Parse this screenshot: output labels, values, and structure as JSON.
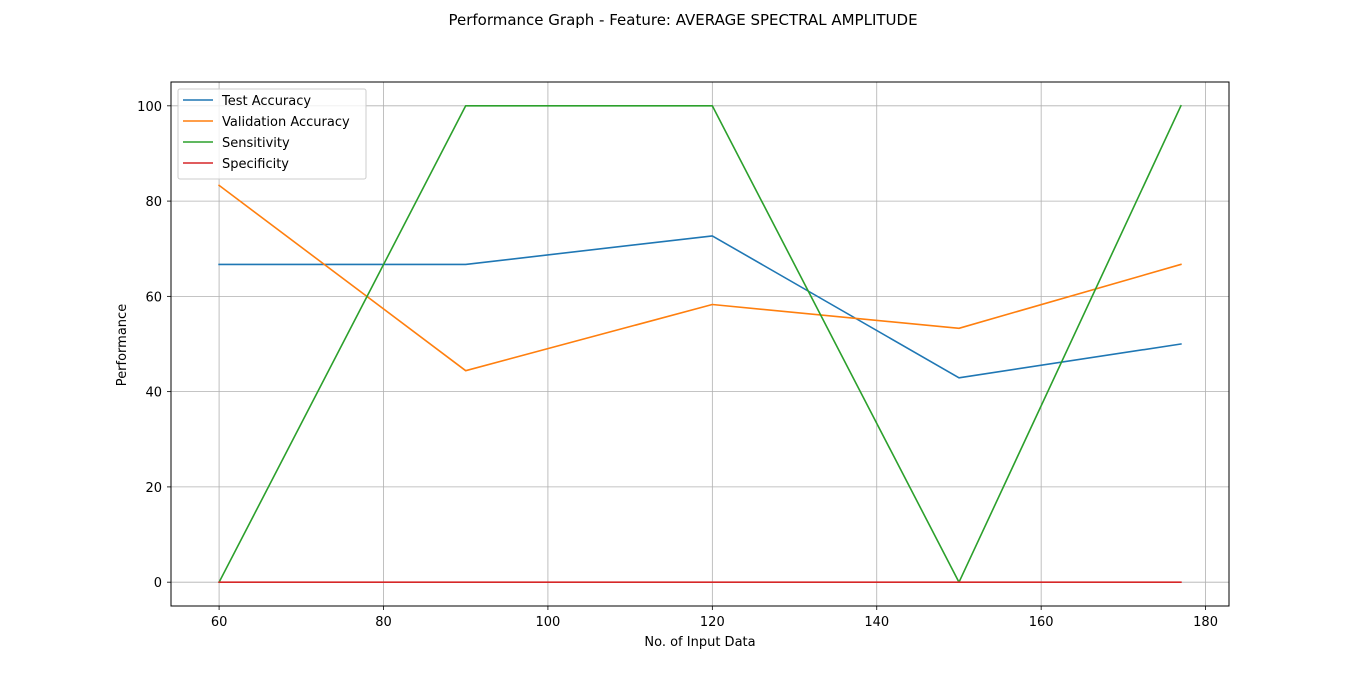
{
  "chart_data": {
    "type": "line",
    "title": "Performance Graph - Feature: AVERAGE SPECTRAL AMPLITUDE",
    "xlabel": "No. of Input Data",
    "ylabel": "Performance",
    "xlim": [
      54.15,
      182.85
    ],
    "ylim": [
      -5,
      105
    ],
    "xticks": [
      60,
      80,
      100,
      120,
      140,
      160,
      180
    ],
    "yticks": [
      0,
      20,
      40,
      60,
      80,
      100
    ],
    "grid": true,
    "legend_position": "upper-left",
    "x": [
      60,
      90,
      120,
      150,
      177
    ],
    "series": [
      {
        "name": "Test Accuracy",
        "color": "#1f77b4",
        "values": [
          66.7,
          66.7,
          72.7,
          42.9,
          50.0
        ]
      },
      {
        "name": "Validation Accuracy",
        "color": "#ff7f0e",
        "values": [
          83.3,
          44.4,
          58.3,
          53.3,
          66.7
        ]
      },
      {
        "name": "Sensitivity",
        "color": "#2ca02c",
        "values": [
          0,
          100,
          100,
          0,
          100
        ]
      },
      {
        "name": "Specificity",
        "color": "#d62728",
        "values": [
          0,
          0,
          0,
          0,
          0
        ]
      }
    ]
  }
}
